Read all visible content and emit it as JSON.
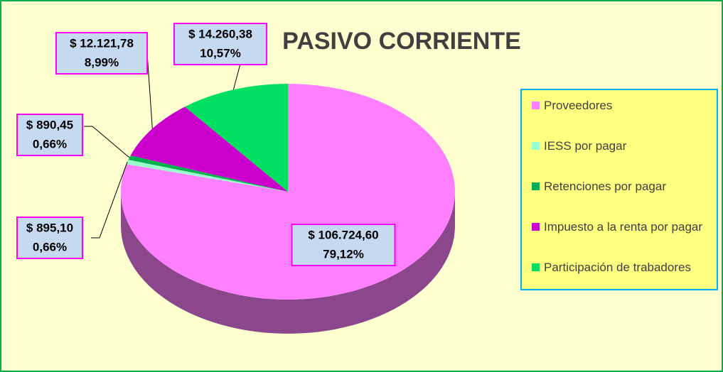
{
  "chart_data": {
    "type": "pie",
    "title": "PASIVO CORRIENTE",
    "categories": [
      "Proveedores",
      "IESS por pagar",
      "Retenciones por pagar",
      "Impuesto a la renta por pagar",
      "Participación de trabadores"
    ],
    "values": [
      106724.6,
      895.1,
      890.45,
      12121.78,
      14260.38
    ],
    "value_labels": [
      "$ 106.724,60",
      "$ 895,10",
      "$ 890,45",
      "$ 12.121,78",
      "$ 14.260,38"
    ],
    "percents": [
      79.12,
      0.66,
      0.66,
      8.99,
      10.57
    ],
    "percent_labels": [
      "79,12%",
      "0,66%",
      "0,66%",
      "8,99%",
      "10,57%"
    ],
    "colors": [
      "#ff80ff",
      "#99ffcc",
      "#00b050",
      "#cc00cc",
      "#00e060"
    ],
    "legend": "right"
  }
}
